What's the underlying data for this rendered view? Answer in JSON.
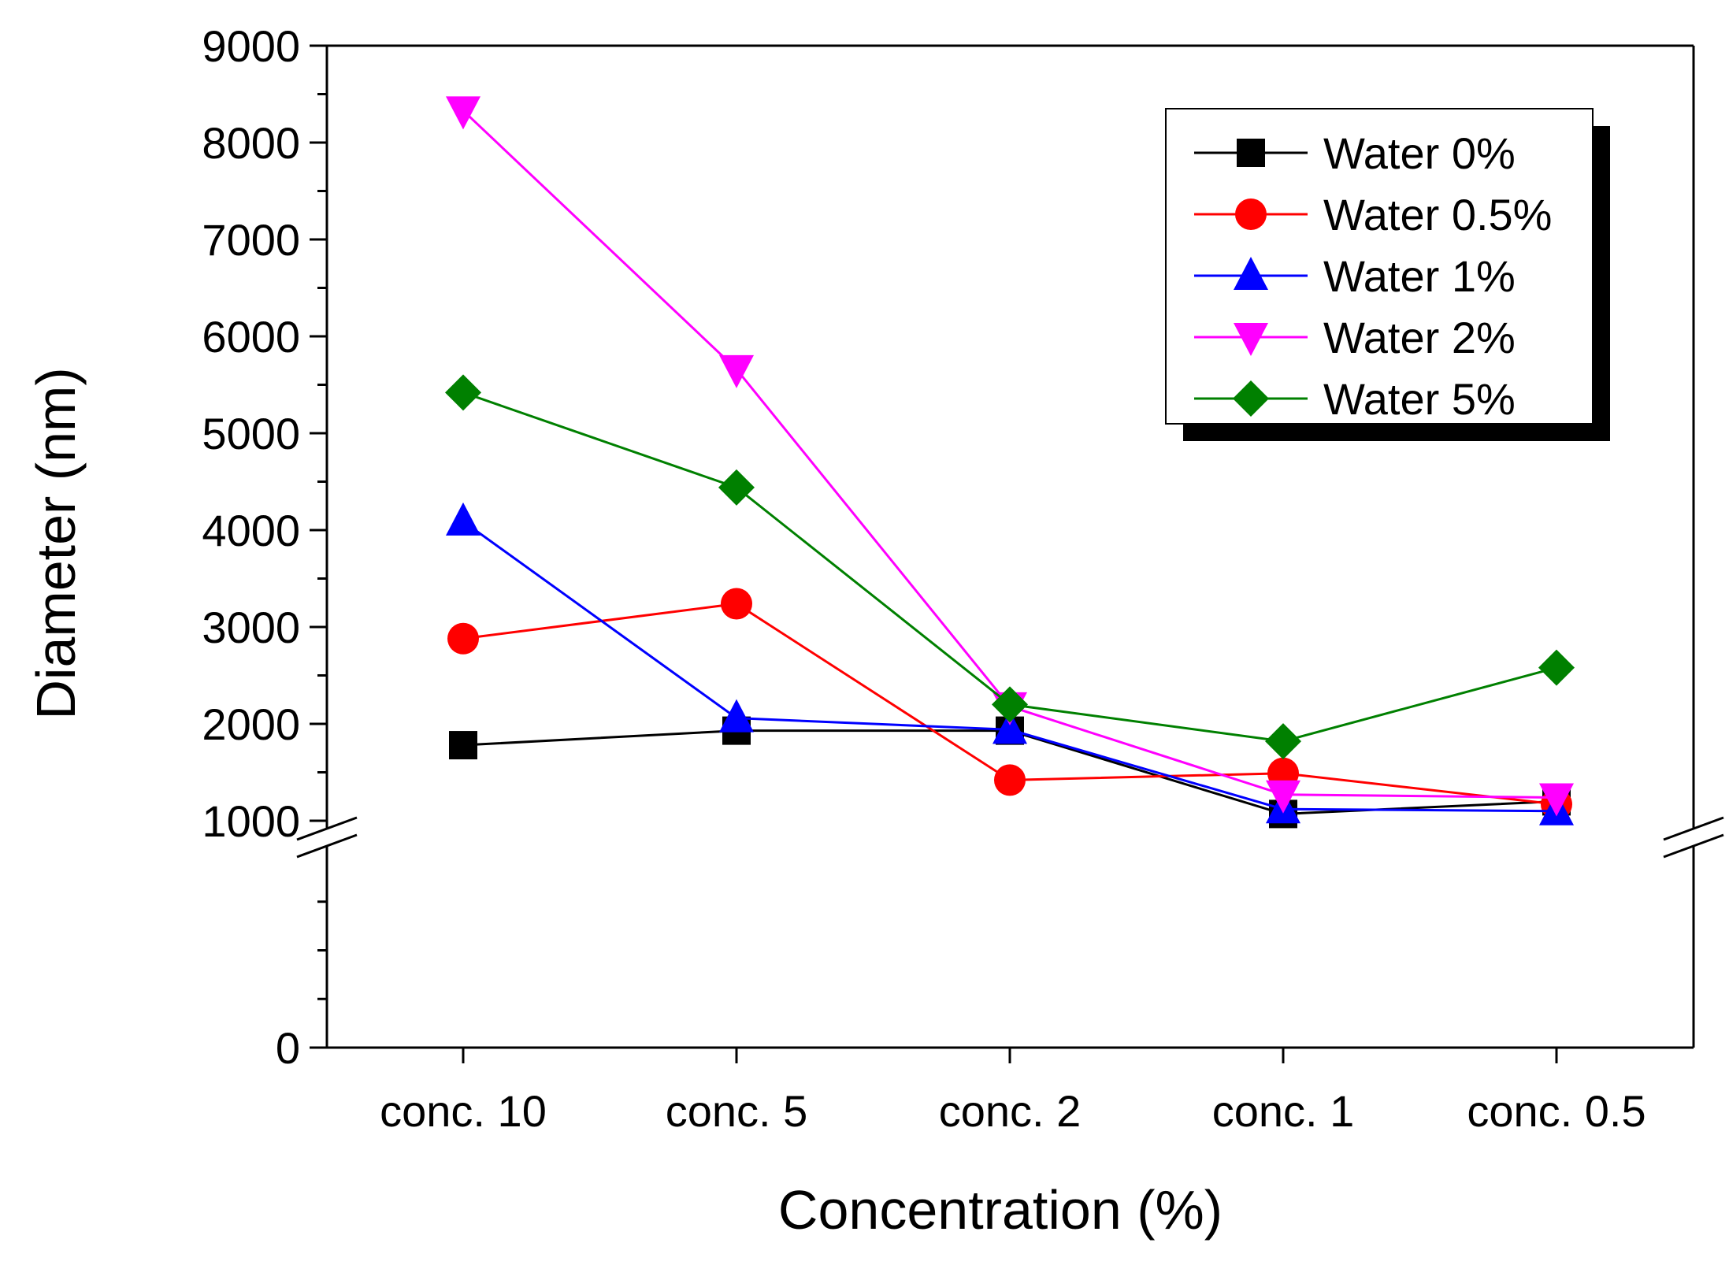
{
  "chart_data": {
    "type": "line",
    "title": "",
    "xlabel": "Concentration (%)",
    "ylabel": "Diameter (nm)",
    "categories": [
      "conc. 10",
      "conc. 5",
      "conc. 2",
      "conc. 1",
      "conc. 0.5"
    ],
    "ylim": [
      0,
      9000
    ],
    "axis_break": [
      800,
      1000
    ],
    "yticks_upper": [
      1000,
      2000,
      3000,
      4000,
      5000,
      6000,
      7000,
      8000,
      9000
    ],
    "yticks_lower": [
      0
    ],
    "ytick_labels": {
      "0": "0",
      "1000": "1000",
      "2000": "2000",
      "3000": "3000",
      "4000": "4000",
      "5000": "5000",
      "6000": "6000",
      "7000": "7000",
      "8000": "8000",
      "9000": "9000"
    },
    "legend_position": "top-right",
    "series": [
      {
        "name": "Water 0%",
        "color": "#000000",
        "marker": "square",
        "values": [
          1780,
          1930,
          1930,
          1070,
          1200
        ]
      },
      {
        "name": "Water 0.5%",
        "color": "#ff0000",
        "marker": "circle",
        "values": [
          2880,
          3240,
          1420,
          1490,
          1170
        ]
      },
      {
        "name": "Water 1%",
        "color": "#0000ff",
        "marker": "triangle-up",
        "values": [
          4090,
          2060,
          1940,
          1120,
          1100
        ]
      },
      {
        "name": "Water 2%",
        "color": "#ff00ff",
        "marker": "triangle-down",
        "values": [
          8330,
          5660,
          2180,
          1270,
          1240
        ]
      },
      {
        "name": "Water 5%",
        "color": "#008000",
        "marker": "diamond",
        "values": [
          5420,
          4440,
          2200,
          1820,
          2580
        ]
      }
    ]
  }
}
